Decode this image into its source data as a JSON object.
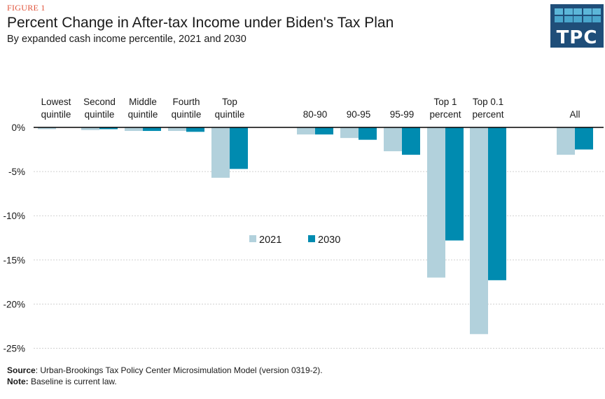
{
  "figure_label": "FIGURE 1",
  "logo": {
    "text": "TPC",
    "background": "#1f4e79"
  },
  "footer": {
    "source_label": "Source",
    "source_text": ": Urban-Brookings Tax Policy Center Microsimulation Model (version 0319-2).",
    "note_label": "Note:",
    "note_text": " Baseline is current law."
  },
  "chart_data": {
    "type": "bar",
    "title": "Percent Change in After-tax Income under Biden's Tax Plan",
    "subtitle": "By expanded cash income percentile, 2021 and 2030",
    "xlabel": "",
    "ylabel": "",
    "ylim": [
      -25,
      0
    ],
    "yticks": [
      0,
      -5,
      -10,
      -15,
      -20,
      -25
    ],
    "ytick_labels": [
      "0%",
      "-5%",
      "-10%",
      "-15%",
      "-20%",
      "-25%"
    ],
    "grid": true,
    "legend_position": "center",
    "categories": [
      [
        "Lowest",
        "quintile"
      ],
      [
        "Second",
        "quintile"
      ],
      [
        "Middle",
        "quintile"
      ],
      [
        "Fourth",
        "quintile"
      ],
      [
        "Top",
        "quintile"
      ],
      [
        "80-90"
      ],
      [
        "90-95"
      ],
      [
        "95-99"
      ],
      [
        "Top 1",
        "percent"
      ],
      [
        "Top 0.1",
        "percent"
      ],
      [
        "All"
      ]
    ],
    "series": [
      {
        "name": "2021",
        "color": "#b2d1dc",
        "values": [
          -0.2,
          -0.3,
          -0.4,
          -0.4,
          -5.7,
          -0.8,
          -1.2,
          -2.7,
          -17.0,
          -23.4,
          -3.1
        ]
      },
      {
        "name": "2030",
        "color": "#008bb0",
        "values": [
          0.0,
          -0.2,
          -0.4,
          -0.5,
          -4.7,
          -0.8,
          -1.4,
          -3.1,
          -12.8,
          -17.3,
          -2.5
        ]
      }
    ]
  }
}
